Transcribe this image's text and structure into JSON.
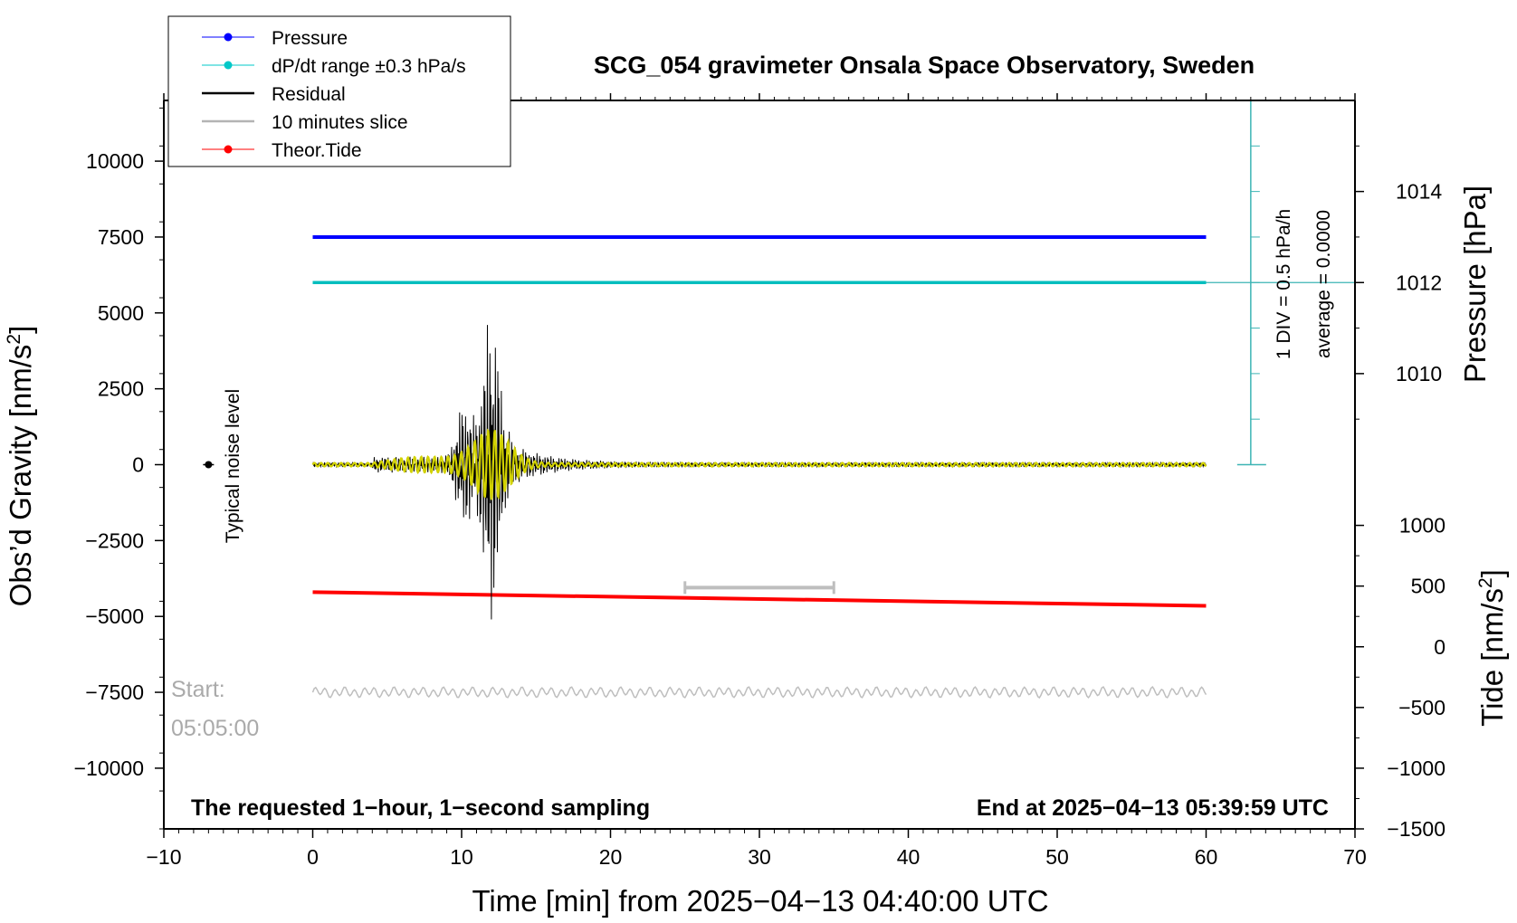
{
  "chart_data": {
    "type": "line",
    "title": "SCG_054 gravimeter Onsala Space Observatory, Sweden",
    "xlabel": "Time [min] from 2025−04−13 04:40:00 UTC",
    "ylabel_left": "Obs’d Gravity [nm/s",
    "ylabel_left_sup": "2",
    "ylabel_left_close": "]",
    "ylabel_right_pressure": "Pressure [hPa]",
    "ylabel_right_tide": "Tide [nm/s",
    "ylabel_right_tide_sup": "2",
    "ylabel_right_tide_close": "]",
    "xlim": [
      -10,
      70
    ],
    "ylim_left": [
      -12000,
      12000
    ],
    "x_ticks": [
      -10,
      0,
      10,
      20,
      30,
      40,
      50,
      60,
      70
    ],
    "x_tick_labels": [
      "−10",
      "0",
      "10",
      "20",
      "30",
      "40",
      "50",
      "60",
      "70"
    ],
    "y_left_ticks": [
      10000,
      7500,
      5000,
      2500,
      0,
      -2500,
      -5000,
      -7500,
      -10000
    ],
    "y_left_tick_labels": [
      "10000",
      "7500",
      "5000",
      "2500",
      "0",
      "−2500",
      "−5000",
      "−7500",
      "−10000"
    ],
    "pressure_ticks": [
      1014,
      1012,
      1010
    ],
    "pressure_tick_labels": [
      "1014",
      "1012",
      "1010"
    ],
    "pressure_gravity_equiv": {
      "1014": 9000,
      "1012": 6000,
      "1010": 3000
    },
    "tide_ticks": [
      1000,
      500,
      0,
      -500,
      -1000,
      -1500
    ],
    "tide_tick_labels": [
      "1000",
      "500",
      "0",
      "−500",
      "−1000",
      "−1500"
    ],
    "tide_gravity_equiv": {
      "1000": -2000,
      "-1500": -12000
    },
    "legend": [
      {
        "label": "Pressure",
        "color": "#0000ff",
        "marker": "dot"
      },
      {
        "label": "dP/dt range ±0.3 hPa/s",
        "color": "#00c8c8",
        "marker": "dot"
      },
      {
        "label": "Residual",
        "color": "#000000",
        "marker": "line"
      },
      {
        "label": "10 minutes slice",
        "color": "#b4b4b4",
        "marker": "line"
      },
      {
        "label": "Theor.Tide",
        "color": "#ff0000",
        "marker": "dot"
      }
    ],
    "series": [
      {
        "name": "Pressure",
        "color": "#0000ff",
        "x": [
          0,
          60
        ],
        "y_gravity_units": [
          7500,
          7500
        ],
        "pressure_hPa": 1013
      },
      {
        "name": "dP/dt",
        "color": "#00bebe",
        "x": [
          0,
          60
        ],
        "y_gravity_units": [
          6000,
          6000
        ]
      },
      {
        "name": "Theor.Tide",
        "color": "#ff0000",
        "x": [
          0,
          60
        ],
        "y_gravity_units": [
          -4200,
          -4650
        ]
      },
      {
        "name": "Residual",
        "color": "#000000",
        "x_range": [
          0,
          60
        ],
        "peak_time": 12,
        "peak_amplitude": 5400,
        "min_amplitude": -5100
      },
      {
        "name": "Residual filtered",
        "color": "#d2d200",
        "x_range": [
          0,
          60
        ],
        "peak_time": 12,
        "peak_amplitude": 1100
      },
      {
        "name": "10 minutes slice",
        "color": "#bebebe",
        "x_range": [
          0,
          60
        ],
        "baseline": -7500,
        "amplitude": 300
      }
    ],
    "slice_bracket": {
      "x": [
        25,
        35
      ],
      "y": -4050,
      "color": "#bebebe"
    },
    "noise_marker": {
      "x": -7,
      "y": 0
    },
    "annotations": {
      "noise": "Typical noise level",
      "start_label": "Start:",
      "start_time": "05:05:00",
      "div_text": "1 DIV = 0.5 hPa/h",
      "average_text": "average = 0.0000",
      "bottom_left": "The requested 1−hour, 1−second sampling",
      "bottom_right": "End at 2025−04−13 05:39:59 UTC"
    },
    "dpdt_scale": {
      "x": 63,
      "top_y": 12000,
      "bottom_y": 0,
      "center_y": 6000,
      "divisions": 8
    }
  }
}
